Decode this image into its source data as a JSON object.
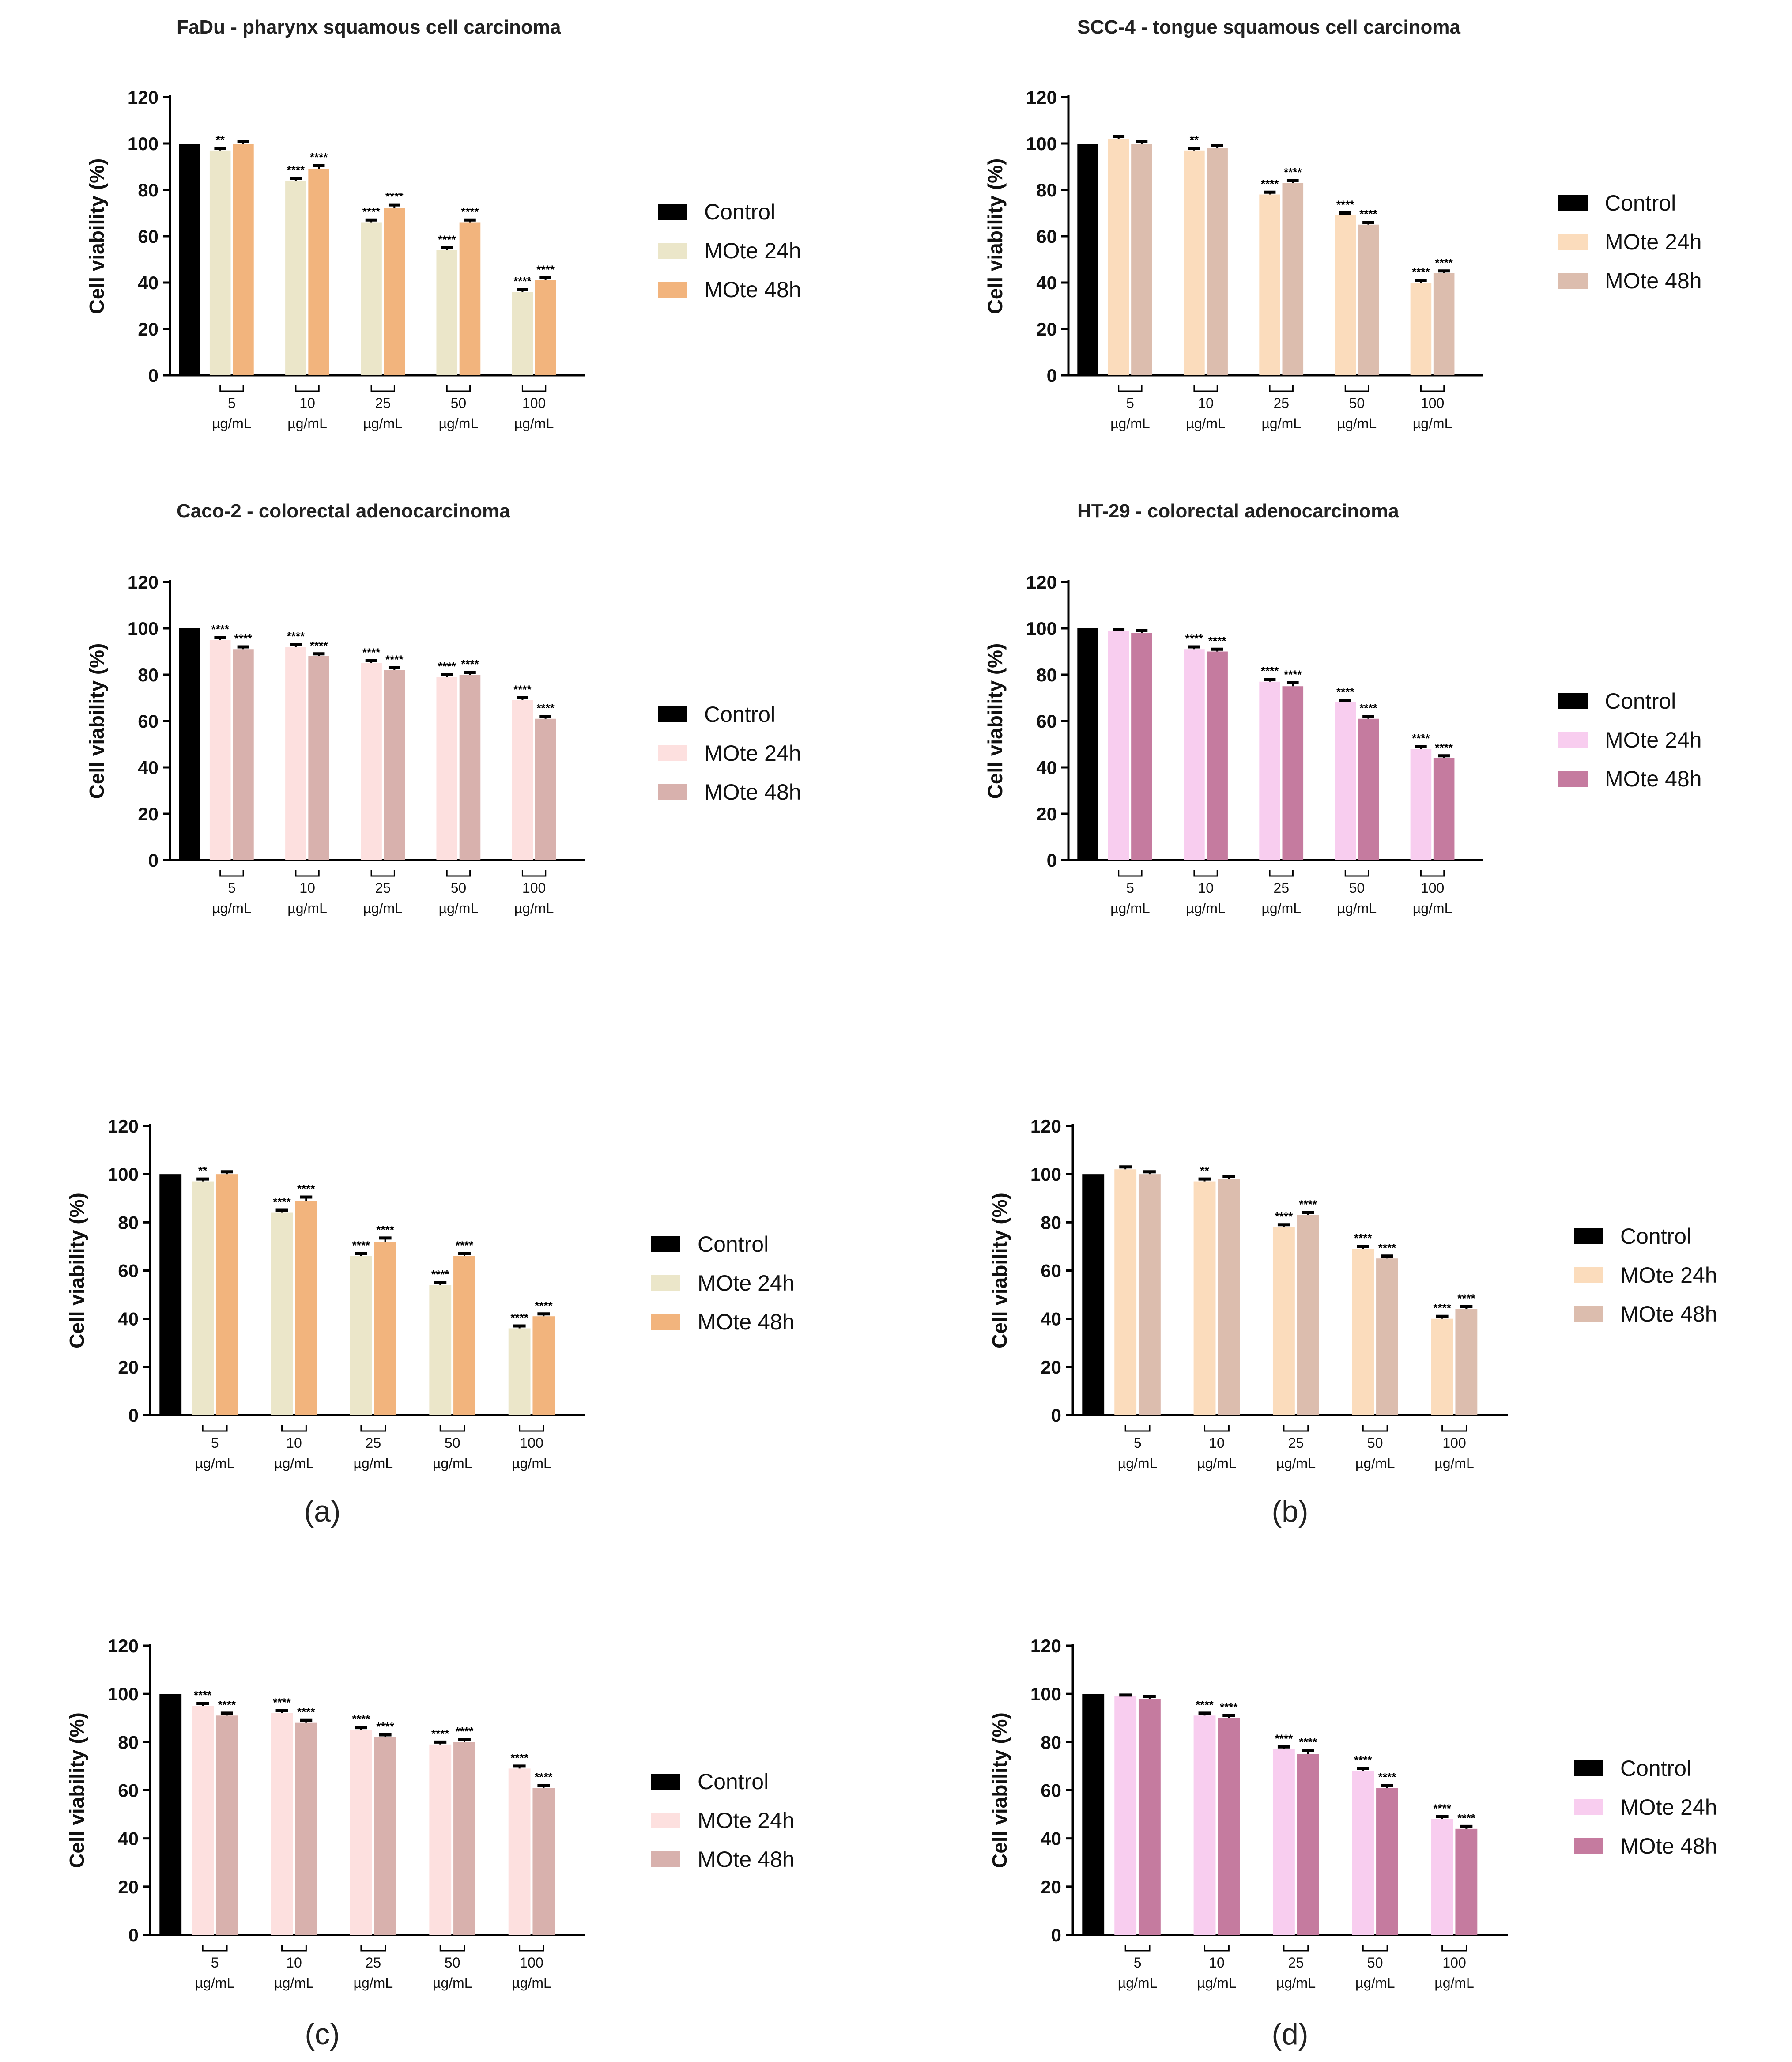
{
  "figure": {
    "panel_labels": [
      "(a)",
      "(b)",
      "(c)",
      "(d)"
    ]
  },
  "chart_data": [
    {
      "type": "bar",
      "title": "FaDu - pharynx squamous cell carcinoma",
      "ylabel": "Cell viability (%)",
      "xlabel": "",
      "ylim": [
        0,
        120
      ],
      "yticks": [
        0,
        20,
        40,
        60,
        80,
        100,
        120
      ],
      "control": {
        "name": "Control",
        "value": 100,
        "color": "#000000"
      },
      "categories": [
        "5",
        "10",
        "25",
        "50",
        "100"
      ],
      "unit": "µg/mL",
      "series": [
        {
          "name": "MOte 24h",
          "color": "#ebe6c9",
          "values": [
            97,
            84,
            66,
            54,
            36
          ],
          "errors": [
            1,
            1,
            1,
            1,
            1
          ],
          "significance": [
            "**",
            "****",
            "****",
            "****",
            "****"
          ]
        },
        {
          "name": "MOte 48h",
          "color": "#f2b47d",
          "values": [
            100,
            89,
            72,
            66,
            41
          ],
          "errors": [
            1,
            1.5,
            1.5,
            1,
            1
          ],
          "significance": [
            "",
            "****",
            "****",
            "****",
            "****"
          ]
        }
      ],
      "legend": "right"
    },
    {
      "type": "bar",
      "title": "SCC-4 - tongue squamous cell carcinoma",
      "ylabel": "Cell viability (%)",
      "xlabel": "",
      "ylim": [
        0,
        120
      ],
      "yticks": [
        0,
        20,
        40,
        60,
        80,
        100,
        120
      ],
      "control": {
        "name": "Control",
        "value": 100,
        "color": "#000000"
      },
      "categories": [
        "5",
        "10",
        "25",
        "50",
        "100"
      ],
      "unit": "µg/mL",
      "series": [
        {
          "name": "MOte 24h",
          "color": "#fbdcbc",
          "values": [
            102,
            97,
            78,
            69,
            40
          ],
          "errors": [
            1,
            1,
            1,
            1,
            1
          ],
          "significance": [
            "",
            "**",
            "****",
            "****",
            "****"
          ]
        },
        {
          "name": "MOte 48h",
          "color": "#dcbdae",
          "values": [
            100,
            98,
            83,
            65,
            44
          ],
          "errors": [
            1,
            1,
            1,
            1,
            1
          ],
          "significance": [
            "",
            "",
            "****",
            "****",
            "****"
          ]
        }
      ],
      "legend": "right"
    },
    {
      "type": "bar",
      "title": "Caco-2 - colorectal adenocarcinoma",
      "ylabel": "Cell viability (%)",
      "xlabel": "",
      "ylim": [
        0,
        120
      ],
      "yticks": [
        0,
        20,
        40,
        60,
        80,
        100,
        120
      ],
      "control": {
        "name": "Control",
        "value": 100,
        "color": "#000000"
      },
      "categories": [
        "5",
        "10",
        "25",
        "50",
        "100"
      ],
      "unit": "µg/mL",
      "series": [
        {
          "name": "MOte 24h",
          "color": "#fde0df",
          "values": [
            95,
            92,
            85,
            79,
            69
          ],
          "errors": [
            1,
            1,
            1,
            1,
            1
          ],
          "significance": [
            "****",
            "****",
            "****",
            "****",
            "****"
          ]
        },
        {
          "name": "MOte 48h",
          "color": "#d8b1ad",
          "values": [
            91,
            88,
            82,
            80,
            61
          ],
          "errors": [
            1,
            1,
            1,
            1,
            1
          ],
          "significance": [
            "****",
            "****",
            "****",
            "****",
            "****"
          ]
        }
      ],
      "legend": "right"
    },
    {
      "type": "bar",
      "title": "HT-29 - colorectal adenocarcinoma",
      "ylabel": "Cell viability (%)",
      "xlabel": "",
      "ylim": [
        0,
        120
      ],
      "yticks": [
        0,
        20,
        40,
        60,
        80,
        100,
        120
      ],
      "control": {
        "name": "Control",
        "value": 100,
        "color": "#000000"
      },
      "categories": [
        "5",
        "10",
        "25",
        "50",
        "100"
      ],
      "unit": "µg/mL",
      "series": [
        {
          "name": "MOte 24h",
          "color": "#f8cdef",
          "values": [
            99,
            91,
            77,
            68,
            48
          ],
          "errors": [
            0.5,
            1,
            1,
            1,
            1
          ],
          "significance": [
            "",
            "****",
            "****",
            "****",
            "****"
          ]
        },
        {
          "name": "MOte 48h",
          "color": "#c57b9f",
          "values": [
            98,
            90,
            75,
            61,
            44
          ],
          "errors": [
            1,
            1,
            1.5,
            1,
            1
          ],
          "significance": [
            "",
            "****",
            "****",
            "****",
            "****"
          ]
        }
      ],
      "legend": "right"
    },
    {
      "type": "bar",
      "title": "",
      "panel": "(a)",
      "ylabel": "Cell viability (%)",
      "xlabel": "",
      "ylim": [
        0,
        120
      ],
      "yticks": [
        0,
        20,
        40,
        60,
        80,
        100,
        120
      ],
      "control": {
        "name": "Control",
        "value": 100,
        "color": "#000000"
      },
      "categories": [
        "5",
        "10",
        "25",
        "50",
        "100"
      ],
      "unit": "µg/mL",
      "series": [
        {
          "name": "MOte 24h",
          "color": "#ebe6c9",
          "values": [
            97,
            84,
            66,
            54,
            36
          ],
          "errors": [
            1,
            1,
            1,
            1,
            1
          ],
          "significance": [
            "**",
            "****",
            "****",
            "****",
            "****"
          ]
        },
        {
          "name": "MOte 48h",
          "color": "#f2b47d",
          "values": [
            100,
            89,
            72,
            66,
            41
          ],
          "errors": [
            1,
            1.5,
            1.5,
            1,
            1
          ],
          "significance": [
            "",
            "****",
            "****",
            "****",
            "****"
          ]
        }
      ],
      "legend": "right"
    },
    {
      "type": "bar",
      "title": "",
      "panel": "(b)",
      "ylabel": "Cell viability (%)",
      "xlabel": "",
      "ylim": [
        0,
        120
      ],
      "yticks": [
        0,
        20,
        40,
        60,
        80,
        100,
        120
      ],
      "control": {
        "name": "Control",
        "value": 100,
        "color": "#000000"
      },
      "categories": [
        "5",
        "10",
        "25",
        "50",
        "100"
      ],
      "unit": "µg/mL",
      "series": [
        {
          "name": "MOte 24h",
          "color": "#fbdcbc",
          "values": [
            102,
            97,
            78,
            69,
            40
          ],
          "errors": [
            1,
            1,
            1,
            1,
            1
          ],
          "significance": [
            "",
            "**",
            "****",
            "****",
            "****"
          ]
        },
        {
          "name": "MOte 48h",
          "color": "#dcbdae",
          "values": [
            100,
            98,
            83,
            65,
            44
          ],
          "errors": [
            1,
            1,
            1,
            1,
            1
          ],
          "significance": [
            "",
            "",
            "****",
            "****",
            "****"
          ]
        }
      ],
      "legend": "right"
    },
    {
      "type": "bar",
      "title": "",
      "panel": "(c)",
      "ylabel": "Cell viability (%)",
      "xlabel": "",
      "ylim": [
        0,
        120
      ],
      "yticks": [
        0,
        20,
        40,
        60,
        80,
        100,
        120
      ],
      "control": {
        "name": "Control",
        "value": 100,
        "color": "#000000"
      },
      "categories": [
        "5",
        "10",
        "25",
        "50",
        "100"
      ],
      "unit": "µg/mL",
      "series": [
        {
          "name": "MOte 24h",
          "color": "#fde0df",
          "values": [
            95,
            92,
            85,
            79,
            69
          ],
          "errors": [
            1,
            1,
            1,
            1,
            1
          ],
          "significance": [
            "****",
            "****",
            "****",
            "****",
            "****"
          ]
        },
        {
          "name": "MOte 48h",
          "color": "#d8b1ad",
          "values": [
            91,
            88,
            82,
            80,
            61
          ],
          "errors": [
            1,
            1,
            1,
            1,
            1
          ],
          "significance": [
            "****",
            "****",
            "****",
            "****",
            "****"
          ]
        }
      ],
      "legend": "right"
    },
    {
      "type": "bar",
      "title": "",
      "panel": "(d)",
      "ylabel": "Cell viability (%)",
      "xlabel": "",
      "ylim": [
        0,
        120
      ],
      "yticks": [
        0,
        20,
        40,
        60,
        80,
        100,
        120
      ],
      "control": {
        "name": "Control",
        "value": 100,
        "color": "#000000"
      },
      "categories": [
        "5",
        "10",
        "25",
        "50",
        "100"
      ],
      "unit": "µg/mL",
      "series": [
        {
          "name": "MOte 24h",
          "color": "#f8cdef",
          "values": [
            99,
            91,
            77,
            68,
            48
          ],
          "errors": [
            0.5,
            1,
            1,
            1,
            1
          ],
          "significance": [
            "",
            "****",
            "****",
            "****",
            "****"
          ]
        },
        {
          "name": "MOte 48h",
          "color": "#c57b9f",
          "values": [
            98,
            90,
            75,
            61,
            44
          ],
          "errors": [
            1,
            1,
            1.5,
            1,
            1
          ],
          "significance": [
            "",
            "****",
            "****",
            "****",
            "****"
          ]
        }
      ],
      "legend": "right"
    }
  ]
}
